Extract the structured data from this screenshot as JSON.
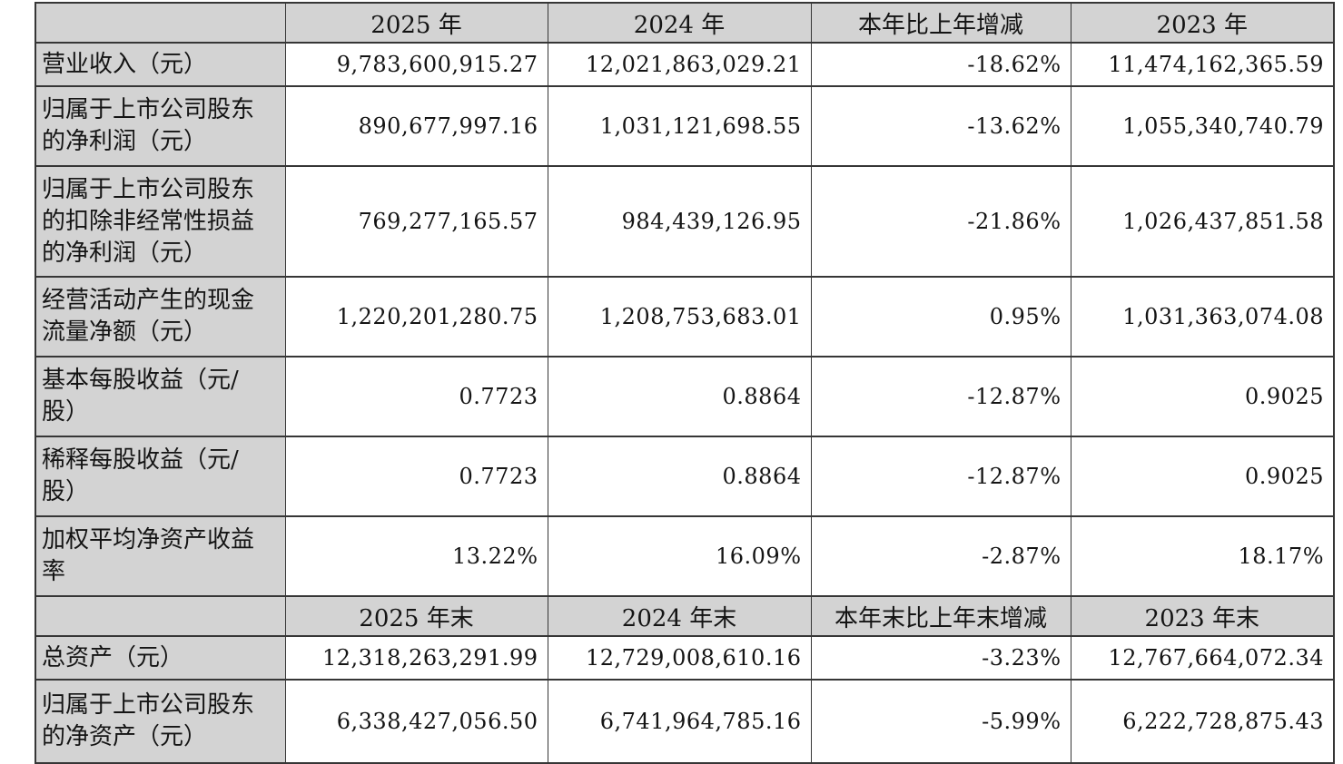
{
  "colors": {
    "cell_gray": "#d3d3d3",
    "border_dark": "#363636",
    "text": "#141414"
  },
  "table": {
    "annual_header": {
      "blank": "",
      "y2025": "2025 年",
      "y2024": "2024 年",
      "change": "本年比上年增减",
      "y2023": "2023 年"
    },
    "annual_rows": [
      {
        "label": "营业收入（元）",
        "y2025": "9,783,600,915.27",
        "y2024": "12,021,863,029.21",
        "change": "-18.62%",
        "y2023": "11,474,162,365.59"
      },
      {
        "label": "归属于上市公司股东的净利润（元）",
        "y2025": "890,677,997.16",
        "y2024": "1,031,121,698.55",
        "change": "-13.62%",
        "y2023": "1,055,340,740.79"
      },
      {
        "label": "归属于上市公司股东的扣除非经常性损益的净利润（元）",
        "y2025": "769,277,165.57",
        "y2024": "984,439,126.95",
        "change": "-21.86%",
        "y2023": "1,026,437,851.58"
      },
      {
        "label": "经营活动产生的现金流量净额（元）",
        "y2025": "1,220,201,280.75",
        "y2024": "1,208,753,683.01",
        "change": "0.95%",
        "y2023": "1,031,363,074.08"
      },
      {
        "label": "基本每股收益（元/股）",
        "y2025": "0.7723",
        "y2024": "0.8864",
        "change": "-12.87%",
        "y2023": "0.9025"
      },
      {
        "label": "稀释每股收益（元/股）",
        "y2025": "0.7723",
        "y2024": "0.8864",
        "change": "-12.87%",
        "y2023": "0.9025"
      },
      {
        "label": "加权平均净资产收益率",
        "y2025": "13.22%",
        "y2024": "16.09%",
        "change": "-2.87%",
        "y2023": "18.17%"
      }
    ],
    "period_end_header": {
      "blank": "",
      "y2025": "2025 年末",
      "y2024": "2024 年末",
      "change": "本年末比上年末增减",
      "y2023": "2023 年末"
    },
    "period_end_rows": [
      {
        "label": "总资产（元）",
        "y2025": "12,318,263,291.99",
        "y2024": "12,729,008,610.16",
        "change": "-3.23%",
        "y2023": "12,767,664,072.34"
      },
      {
        "label": "归属于上市公司股东的净资产（元）",
        "y2025": "6,338,427,056.50",
        "y2024": "6,741,964,785.16",
        "change": "-5.99%",
        "y2023": "6,222,728,875.43"
      }
    ]
  }
}
